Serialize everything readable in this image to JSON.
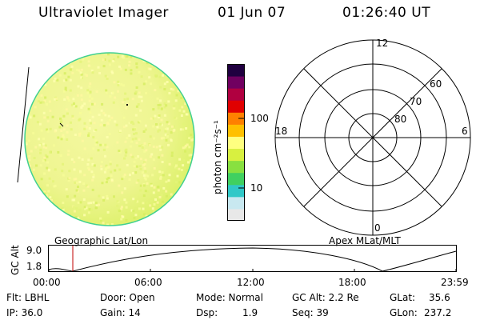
{
  "header": {
    "instrument": "Ultraviolet Imager",
    "date": "01 Jun 07",
    "time": "01:26:40 UT"
  },
  "colorbar": {
    "label": "photon cm⁻²s⁻¹",
    "ticks": [
      "100",
      "10"
    ],
    "colors": [
      "#e8e8e8",
      "#c8e8f0",
      "#30c8c8",
      "#40d060",
      "#88e040",
      "#d8f040",
      "#ffff80",
      "#ffc000",
      "#ff8000",
      "#e00000",
      "#b00040",
      "#700060",
      "#200040"
    ]
  },
  "polar": {
    "labels": [
      "12",
      "6",
      "0",
      "18",
      "60",
      "70",
      "80"
    ]
  },
  "orbit": {
    "left_caption": "Geographic Lat/Lon",
    "right_caption": "Apex MLat/MLT",
    "axis_label": "GC Alt",
    "y_ticks": [
      "9.0",
      "1.8"
    ],
    "x_ticks": [
      "00:00",
      "06:00",
      "12:00",
      "18:00",
      "23:59"
    ]
  },
  "info": {
    "flt": "Flt: LBHL",
    "ip": "IP: 36.0",
    "door": "Door: Open",
    "gain": "Gain: 14",
    "mode": "Mode: Normal",
    "dsp_label": "Dsp:",
    "dsp_value": "1.9",
    "gcalt": "GC Alt: 2.2 Re",
    "seq": "Seq: 39",
    "glat_label": "GLat:",
    "glat_value": "35.6",
    "glon_label": "GLon:",
    "glon_value": "237.2"
  }
}
